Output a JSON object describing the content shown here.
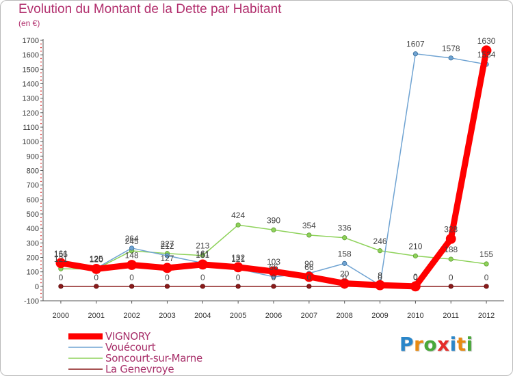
{
  "title": "Evolution du Montant de la Dette par Habitant",
  "subtitle": "(en €)",
  "logo": {
    "letters": [
      "P",
      "r",
      "o",
      "x",
      "i",
      "t",
      "i"
    ],
    "colors": [
      "#2a86c9",
      "#e98a12",
      "#49a83a",
      "#e52d2a",
      "#2a86c9",
      "#e98a12",
      "#49a83a"
    ]
  },
  "chart_data": {
    "type": "line",
    "title": "Evolution du Montant de la Dette par Habitant",
    "ylabel": "(en €)",
    "xlabel": "",
    "grid": false,
    "legend_position": "bottom-left",
    "x": [
      "2000",
      "2001",
      "2002",
      "2003",
      "2004",
      "2005",
      "2006",
      "2007",
      "2008",
      "2009",
      "2010",
      "2011",
      "2012"
    ],
    "ylim": [
      -100,
      1700
    ],
    "yticks": [
      -100,
      0,
      100,
      200,
      300,
      400,
      500,
      600,
      700,
      800,
      900,
      1000,
      1100,
      1200,
      1300,
      1400,
      1500,
      1600,
      1700
    ],
    "series": [
      {
        "name": "Soncourt-sur-Marne",
        "color": "#8ed25a",
        "values": [
          121,
          120,
          245,
          227,
          213,
          424,
          390,
          354,
          336,
          246,
          210,
          188,
          155
        ],
        "labels": [
          "121",
          "120",
          "245",
          "227",
          "213",
          "424",
          "390",
          "354",
          "336",
          "246",
          "210",
          "188",
          "155"
        ]
      },
      {
        "name": "Vouécourt",
        "color": "#6fa3d2",
        "values": [
          156,
          125,
          264,
          212,
          161,
          121,
          66,
          90,
          158,
          8,
          1607,
          1578,
          1534
        ],
        "labels": [
          "156",
          "125",
          "264",
          "212",
          "161",
          "121",
          "66",
          "90",
          "158",
          "8",
          "1607",
          "1578",
          "1534"
        ]
      },
      {
        "name": "La Genevroye",
        "color": "#8a1a1a",
        "values": [
          0,
          0,
          0,
          0,
          0,
          0,
          0,
          0,
          0,
          0,
          0,
          0,
          0
        ],
        "labels": [
          "0",
          "0",
          "0",
          "0",
          "0",
          "0",
          "0",
          "0",
          "0",
          "0",
          "0",
          "0",
          "0"
        ]
      },
      {
        "name": "VIGNORY",
        "color": "#ff0000",
        "values": [
          161,
          120,
          148,
          127,
          151,
          132,
          103,
          66,
          20,
          8,
          0,
          328,
          1630
        ],
        "labels": [
          "161",
          "120",
          "148",
          "127",
          "151",
          "132",
          "103",
          "66",
          "20",
          "8",
          "0",
          "328",
          "1630"
        ]
      }
    ],
    "legend": [
      "VIGNORY",
      "Vouécourt",
      "Soncourt-sur-Marne",
      "La Genevroye"
    ]
  }
}
